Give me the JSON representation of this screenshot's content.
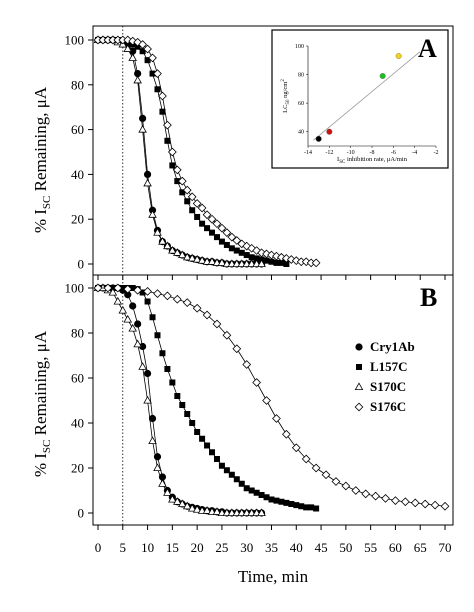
{
  "chart_data": [
    {
      "panel": "A",
      "type": "scatter",
      "xlabel": "",
      "ylabel": "% I_SC Remaining, μA",
      "ylim": [
        0,
        100
      ],
      "xlim": [
        0,
        70
      ],
      "yticks": [
        0,
        20,
        40,
        60,
        80,
        100
      ],
      "series": [
        {
          "name": "Cry1Ab",
          "marker": "filled-circle",
          "x": [
            0,
            1,
            2,
            3,
            4,
            5,
            6,
            7,
            8,
            9,
            10,
            11,
            12,
            13,
            14,
            15,
            16,
            17,
            18,
            19,
            20,
            21,
            22,
            23,
            24,
            25,
            26,
            27,
            28,
            29,
            30,
            31,
            32,
            33
          ],
          "values": [
            100,
            100,
            100,
            100,
            99.5,
            99,
            98,
            95,
            85,
            65,
            40,
            24,
            15,
            10,
            8,
            6,
            5,
            4,
            3,
            2.5,
            2,
            1.5,
            1,
            1,
            0.5,
            0.5,
            0,
            0,
            0,
            0,
            0,
            0,
            0,
            0
          ]
        },
        {
          "name": "L157C",
          "marker": "filled-square",
          "x": [
            0,
            1,
            2,
            3,
            4,
            5,
            6,
            7,
            8,
            9,
            10,
            11,
            12,
            13,
            14,
            15,
            16,
            17,
            18,
            19,
            20,
            21,
            22,
            23,
            24,
            25,
            26,
            27,
            28,
            29,
            30,
            31,
            32,
            33,
            34,
            35,
            36,
            37,
            38
          ],
          "values": [
            100,
            100,
            100,
            100,
            100,
            99.5,
            99,
            98,
            97,
            95,
            91,
            85,
            78,
            68,
            55,
            44,
            37,
            32,
            28,
            24,
            21,
            18,
            16,
            14,
            12,
            10,
            8.5,
            7,
            6,
            5,
            4,
            3,
            2.5,
            2,
            1.5,
            1,
            0.5,
            0.5,
            0
          ]
        },
        {
          "name": "S170C",
          "marker": "open-triangle",
          "x": [
            0,
            1,
            2,
            3,
            4,
            5,
            6,
            7,
            8,
            9,
            10,
            11,
            12,
            13,
            14,
            15,
            16,
            17,
            18,
            19,
            20,
            21,
            22,
            23,
            24,
            25,
            26,
            27,
            28,
            29,
            30,
            31,
            32,
            33
          ],
          "values": [
            100,
            100,
            100,
            100,
            99,
            98,
            96,
            92,
            82,
            60,
            36,
            22,
            14,
            10,
            8,
            6,
            5,
            4,
            3,
            2.5,
            2,
            1.5,
            1,
            1,
            0.5,
            0.5,
            0,
            0,
            0,
            0,
            0,
            0,
            0,
            0
          ]
        },
        {
          "name": "S176C",
          "marker": "open-diamond",
          "x": [
            0,
            1,
            2,
            3,
            4,
            5,
            6,
            7,
            8,
            9,
            10,
            11,
            12,
            13,
            14,
            15,
            16,
            17,
            18,
            19,
            20,
            21,
            22,
            23,
            24,
            25,
            26,
            27,
            28,
            29,
            30,
            31,
            32,
            33,
            34,
            35,
            36,
            37,
            38,
            39,
            40,
            41,
            42,
            43,
            44
          ],
          "values": [
            100,
            100,
            100,
            100,
            100,
            100,
            100,
            99.5,
            99,
            98,
            96,
            92,
            85,
            75,
            62,
            50,
            42,
            37,
            33,
            30,
            27,
            25,
            22,
            20,
            18,
            16,
            14,
            12,
            10.5,
            9,
            8,
            7,
            6,
            5,
            4.5,
            4,
            3.5,
            3,
            2.5,
            2,
            1.5,
            1,
            1,
            0.5,
            0.5
          ]
        }
      ],
      "inset": {
        "xlabel": "I_SC inhibition rate, μA/min",
        "ylabel": "LC_50, ng/cm²",
        "xlim": [
          -14,
          -2
        ],
        "ylim": [
          30,
          100
        ],
        "xticks": [
          -14,
          -12,
          -10,
          -8,
          -6,
          -4,
          -2
        ],
        "yticks": [
          40,
          60,
          80,
          100
        ],
        "points": [
          {
            "x": -13,
            "y": 35,
            "color": "#000000"
          },
          {
            "x": -12,
            "y": 40,
            "color": "#cc1111"
          },
          {
            "x": -7,
            "y": 79,
            "color": "#22bb22"
          },
          {
            "x": -5.5,
            "y": 93,
            "color": "#f0d020"
          }
        ],
        "fit": [
          [
            -13.5,
            34
          ],
          [
            -3.5,
            96
          ]
        ]
      }
    },
    {
      "panel": "B",
      "type": "scatter",
      "xlabel": "Time, min",
      "ylabel": "% I_SC Remaining, μA",
      "ylim": [
        0,
        100
      ],
      "xlim": [
        0,
        70
      ],
      "yticks": [
        0,
        20,
        40,
        60,
        80,
        100
      ],
      "xticks": [
        0,
        5,
        10,
        15,
        20,
        25,
        30,
        35,
        40,
        45,
        50,
        55,
        60,
        65,
        70
      ],
      "series": [
        {
          "name": "Cry1Ab",
          "marker": "filled-circle",
          "x": [
            0,
            1,
            2,
            3,
            4,
            5,
            6,
            7,
            8,
            9,
            10,
            11,
            12,
            13,
            14,
            15,
            16,
            17,
            18,
            19,
            20,
            21,
            22,
            23,
            24,
            25,
            26,
            27,
            28,
            29,
            30,
            31,
            32,
            33
          ],
          "values": [
            100,
            100,
            100,
            100,
            100,
            99,
            97,
            92,
            84,
            74,
            62,
            42,
            25,
            16,
            10,
            7,
            5,
            4,
            3,
            2.5,
            2,
            1.5,
            1,
            1,
            0.5,
            0.5,
            0,
            0,
            0,
            0,
            0,
            0,
            0,
            0
          ]
        },
        {
          "name": "L157C",
          "marker": "filled-square",
          "x": [
            0,
            1,
            2,
            3,
            4,
            5,
            6,
            7,
            8,
            9,
            10,
            11,
            12,
            13,
            14,
            15,
            16,
            17,
            18,
            19,
            20,
            21,
            22,
            23,
            24,
            25,
            26,
            27,
            28,
            29,
            30,
            31,
            32,
            33,
            34,
            35,
            36,
            37,
            38,
            39,
            40,
            41,
            42,
            43,
            44
          ],
          "values": [
            100,
            100,
            100,
            100,
            100,
            100,
            100,
            100,
            99.5,
            98,
            94,
            87,
            79,
            71,
            64,
            58,
            52,
            48,
            44,
            40,
            36,
            33,
            30,
            27,
            24,
            21,
            19,
            17,
            15,
            13,
            11,
            10,
            9,
            8,
            7,
            6,
            5.5,
            5,
            4.5,
            4,
            3.5,
            3,
            2.5,
            2.5,
            2
          ]
        },
        {
          "name": "S170C",
          "marker": "open-triangle",
          "x": [
            0,
            1,
            2,
            3,
            4,
            5,
            6,
            7,
            8,
            9,
            10,
            11,
            12,
            13,
            14,
            15,
            16,
            17,
            18,
            19,
            20,
            21,
            22,
            23,
            24,
            25,
            26,
            27,
            28,
            29,
            30,
            31,
            32,
            33
          ],
          "values": [
            100,
            100,
            99,
            98,
            94,
            90,
            86,
            82,
            75,
            65,
            50,
            32,
            20,
            13,
            9,
            6,
            5,
            4,
            3,
            2,
            1.5,
            1,
            1,
            0.5,
            0.5,
            0,
            0,
            0,
            0,
            0,
            0,
            0,
            0,
            0
          ]
        },
        {
          "name": "S176C",
          "marker": "open-diamond",
          "x": [
            0,
            2,
            4,
            6,
            8,
            10,
            12,
            14,
            16,
            18,
            20,
            22,
            24,
            26,
            28,
            30,
            32,
            34,
            36,
            38,
            40,
            42,
            44,
            46,
            48,
            50,
            52,
            54,
            56,
            58,
            60,
            62,
            64,
            66,
            68,
            70
          ],
          "values": [
            100,
            100,
            100,
            99.5,
            99,
            98.5,
            97.5,
            96.5,
            95,
            93.5,
            91,
            88,
            84,
            79,
            73,
            66,
            58,
            50,
            42,
            35,
            29,
            24,
            20,
            17,
            14,
            12,
            10,
            8.5,
            7.5,
            6.5,
            5.5,
            5,
            4.5,
            4,
            3.5,
            3
          ]
        }
      ],
      "legend": {
        "placement": "right",
        "entries": [
          "Cry1Ab",
          "L157C",
          "S170C",
          "S176C"
        ]
      }
    }
  ],
  "labels": {
    "panel_a_letter": "A",
    "panel_b_letter": "B",
    "ylabel_prefix": "% I",
    "ylabel_sub": "SC",
    "ylabel_suffix": " Remaining, μA",
    "xlabel": "Time, min",
    "inset_ylabel_main": "LC",
    "inset_ylabel_sub": "50",
    "inset_ylabel_unit": "ng/cm",
    "inset_ylabel_sup": "2",
    "inset_xlabel_main": "I",
    "inset_xlabel_sub": "SC",
    "inset_xlabel_rest": " inhibition rate, μA/min"
  },
  "reference_line_minutes": 5
}
